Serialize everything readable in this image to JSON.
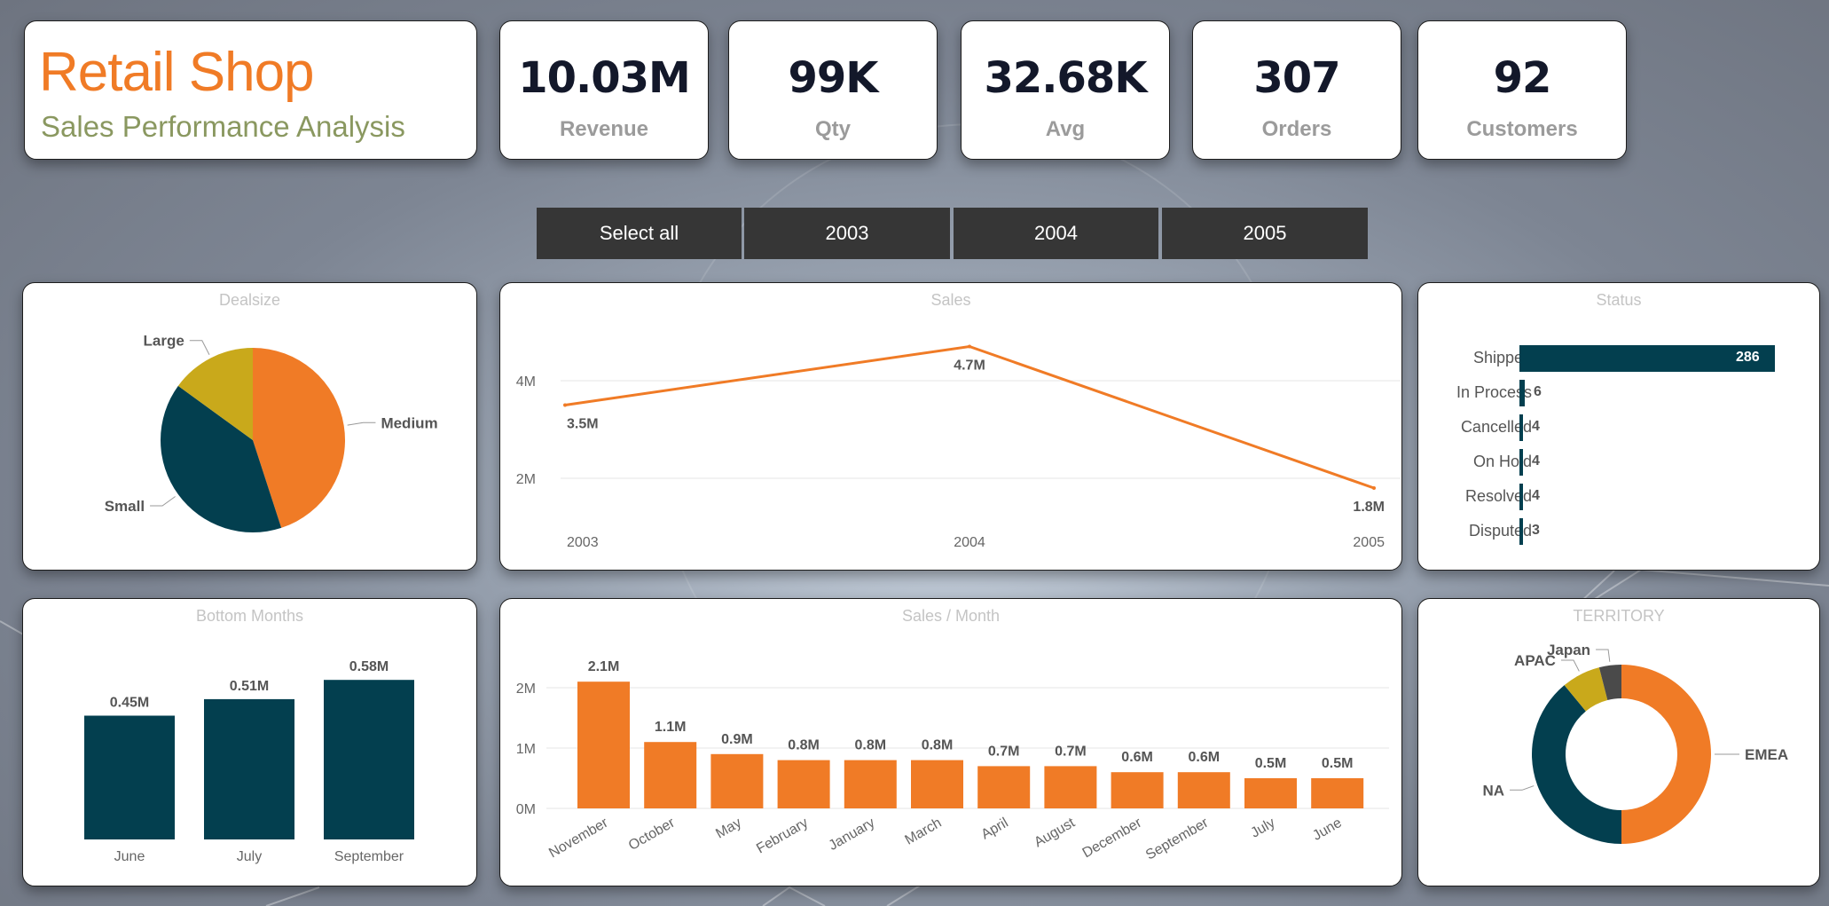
{
  "header": {
    "title": "Retail Shop",
    "subtitle": "Sales Performance Analysis"
  },
  "kpis": [
    {
      "value": "10.03M",
      "label": "Revenue"
    },
    {
      "value": "99K",
      "label": "Qty"
    },
    {
      "value": "32.68K",
      "label": "Avg"
    },
    {
      "value": "307",
      "label": "Orders"
    },
    {
      "value": "92",
      "label": "Customers"
    }
  ],
  "slicer": [
    "Select all",
    "2003",
    "2004",
    "2005"
  ],
  "colors": {
    "orange": "#f07b26",
    "teal": "#033f4f",
    "gold": "#c9a91b",
    "gray": "#4a4a4a"
  },
  "chart_data": [
    {
      "type": "pie",
      "title": "Dealsize",
      "categories": [
        "Medium",
        "Small",
        "Large"
      ],
      "values": [
        0.45,
        0.4,
        0.15
      ]
    },
    {
      "type": "line",
      "title": "Sales",
      "x": [
        "2003",
        "2004",
        "2005"
      ],
      "y": [
        3.5,
        4.7,
        1.8
      ],
      "data_labels": [
        "3.5M",
        "4.7M",
        "1.8M"
      ],
      "ytick_labels": [
        "2M",
        "4M"
      ],
      "yticks": [
        2,
        4
      ],
      "ylim": [
        0,
        5
      ],
      "grid": true
    },
    {
      "type": "bar",
      "title": "Status",
      "orientation": "horizontal",
      "categories": [
        "Shipped",
        "In Process",
        "Cancelled",
        "On Hold",
        "Resolved",
        "Disputed"
      ],
      "values": [
        286,
        6,
        4,
        4,
        4,
        3
      ]
    },
    {
      "type": "bar",
      "title": "Bottom Months",
      "categories": [
        "June",
        "July",
        "September"
      ],
      "values": [
        0.45,
        0.51,
        0.58
      ],
      "data_labels": [
        "0.45M",
        "0.51M",
        "0.58M"
      ],
      "ylim": [
        0,
        0.6
      ]
    },
    {
      "type": "bar",
      "title": "Sales / Month",
      "categories": [
        "November",
        "October",
        "May",
        "February",
        "January",
        "March",
        "April",
        "August",
        "December",
        "September",
        "July",
        "June"
      ],
      "values": [
        2.1,
        1.1,
        0.9,
        0.8,
        0.8,
        0.8,
        0.7,
        0.7,
        0.6,
        0.6,
        0.5,
        0.5
      ],
      "data_labels": [
        "2.1M",
        "1.1M",
        "0.9M",
        "0.8M",
        "0.8M",
        "0.8M",
        "0.7M",
        "0.7M",
        "0.6M",
        "0.6M",
        "0.5M",
        "0.5M"
      ],
      "ytick_labels": [
        "0M",
        "1M",
        "2M"
      ],
      "yticks": [
        0,
        1,
        2
      ],
      "ylim": [
        0,
        2.2
      ],
      "grid": true
    },
    {
      "type": "pie",
      "subtype": "donut",
      "title": "TERRITORY",
      "categories": [
        "EMEA",
        "NA",
        "APAC",
        "Japan"
      ],
      "values": [
        0.5,
        0.39,
        0.07,
        0.04
      ]
    }
  ]
}
